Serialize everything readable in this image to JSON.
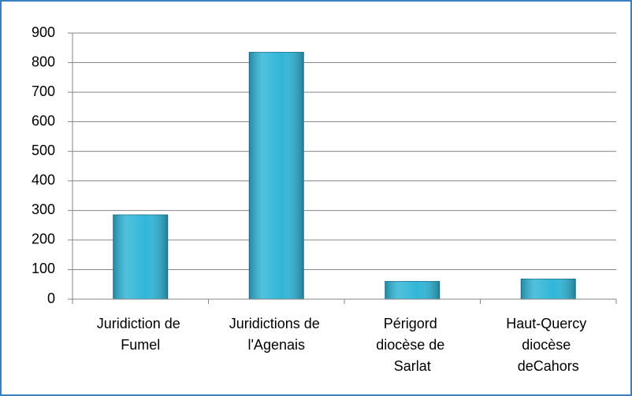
{
  "chart_data": {
    "type": "bar",
    "categories": [
      "Juridiction de Fumel",
      "Juridictions de l'Agenais",
      "Périgord diocèse de Sarlat",
      "Haut-Quercy diocèse deCahors"
    ],
    "values": [
      285,
      835,
      60,
      68
    ],
    "color": "#31b6d8",
    "ylim": [
      0,
      900
    ],
    "yticks": [
      0,
      100,
      200,
      300,
      400,
      500,
      600,
      700,
      800,
      900
    ],
    "grid": true
  }
}
